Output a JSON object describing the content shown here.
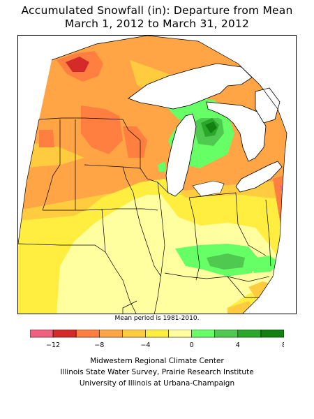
{
  "title_line1": "Accumulated Snowfall (in): Departure from Mean",
  "title_line2": "March 1, 2012 to March 31, 2012",
  "mean_note": "Mean period is 1981-2010.",
  "legend": {
    "colors": [
      "#f0607f",
      "#d52a2a",
      "#ff7f40",
      "#ffa545",
      "#ffcc40",
      "#ffee3f",
      "#ffffa0",
      "#66ff66",
      "#4fc94f",
      "#2ba82b",
      "#118211"
    ],
    "tick_labels": [
      "−12",
      "−8",
      "−4",
      "0",
      "4",
      "8"
    ]
  },
  "credits": [
    "Midwestern Regional Climate Center",
    "Illinois State Water Survey, Prairie Research Institute",
    "University of Illinois at Urbana-Champaign"
  ],
  "colors": {
    "water": "#ffffff",
    "outline": "#000000"
  }
}
